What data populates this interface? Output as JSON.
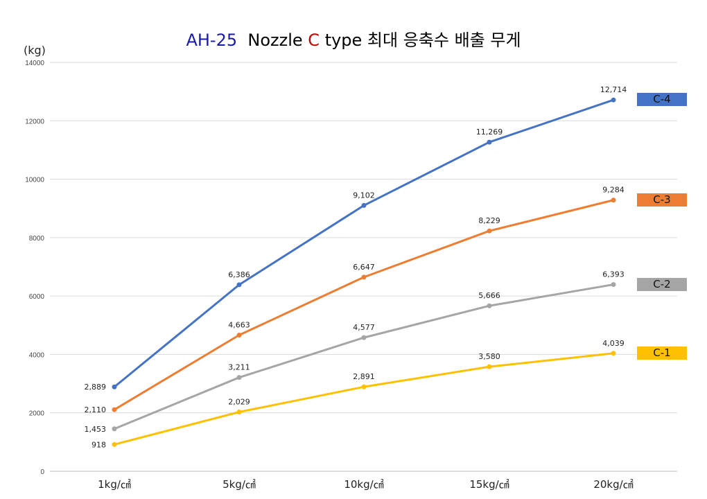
{
  "title": {
    "part1": "AH-25",
    "part2": "Nozzle",
    "part3": "C",
    "part4": "type 최대 응축수 배출 무게",
    "color1": "#1a1aa8",
    "color3": "#c00000"
  },
  "y_unit": "(kg)",
  "chart_data": {
    "type": "line",
    "title": "AH-25 Nozzle C type 최대 응축수 배출 무게",
    "xlabel": "",
    "ylabel": "(kg)",
    "ylim": [
      0,
      14000
    ],
    "yticks": [
      0,
      2000,
      4000,
      6000,
      8000,
      10000,
      12000,
      14000
    ],
    "grid": true,
    "legend_placement": "right",
    "categories": [
      "1kg/㎠",
      "5kg/㎠",
      "10kg/㎠",
      "15kg/㎠",
      "20kg/㎠"
    ],
    "series": [
      {
        "name": "C-4",
        "color": "#4472c4",
        "values": [
          2889,
          6386,
          9102,
          11269,
          12714
        ],
        "labels": [
          "2,889",
          "6,386",
          "9,102",
          "11,269",
          "12,714"
        ]
      },
      {
        "name": "C-3",
        "color": "#ed7d31",
        "values": [
          2110,
          4663,
          6647,
          8229,
          9284
        ],
        "labels": [
          "2,110",
          "4,663",
          "6,647",
          "8,229",
          "9,284"
        ]
      },
      {
        "name": "C-2",
        "color": "#a5a5a5",
        "values": [
          1453,
          3211,
          4577,
          5666,
          6393
        ],
        "labels": [
          "1,453",
          "3,211",
          "4,577",
          "5,666",
          "6,393"
        ]
      },
      {
        "name": "C-1",
        "color": "#ffc000",
        "values": [
          918,
          2029,
          2891,
          3580,
          4039
        ],
        "labels": [
          "918",
          "2,029",
          "2,891",
          "3,580",
          "4,039"
        ]
      }
    ]
  }
}
